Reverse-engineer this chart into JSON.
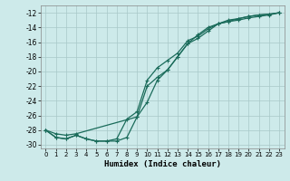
{
  "xlabel": "Humidex (Indice chaleur)",
  "bg_color": "#cdeaea",
  "grid_color": "#a8c8c8",
  "line_color": "#1a6b5a",
  "xlim": [
    -0.5,
    23.5
  ],
  "ylim": [
    -30.5,
    -11.0
  ],
  "yticks": [
    -30,
    -28,
    -26,
    -24,
    -22,
    -20,
    -18,
    -16,
    -14,
    -12
  ],
  "xticks": [
    0,
    1,
    2,
    3,
    4,
    5,
    6,
    7,
    8,
    9,
    10,
    11,
    12,
    13,
    14,
    15,
    16,
    17,
    18,
    19,
    20,
    21,
    22,
    23
  ],
  "line1_x": [
    0,
    1,
    2,
    3,
    4,
    5,
    6,
    7,
    8,
    9,
    10,
    11,
    12,
    13,
    14,
    15,
    16,
    17,
    18,
    19,
    20,
    21,
    22,
    23
  ],
  "line1_y": [
    -28.0,
    -29.0,
    -29.2,
    -28.7,
    -29.2,
    -29.5,
    -29.5,
    -29.5,
    -29.0,
    -26.2,
    -22.0,
    -20.8,
    -19.8,
    -18.0,
    -16.2,
    -15.5,
    -14.5,
    -13.5,
    -13.2,
    -13.0,
    -12.7,
    -12.5,
    -12.3,
    -12.0
  ],
  "line2_x": [
    0,
    1,
    2,
    3,
    4,
    5,
    6,
    7,
    8,
    9,
    10,
    11,
    12,
    13,
    14,
    15,
    16,
    17,
    18,
    19,
    20,
    21,
    22,
    23
  ],
  "line2_y": [
    -28.0,
    -29.0,
    -29.2,
    -28.7,
    -29.2,
    -29.5,
    -29.5,
    -29.2,
    -26.5,
    -25.5,
    -21.2,
    -19.5,
    -18.5,
    -17.5,
    -15.8,
    -15.2,
    -14.2,
    -13.5,
    -13.2,
    -12.8,
    -12.5,
    -12.3,
    -12.2,
    -12.0
  ],
  "line3_x": [
    0,
    1,
    2,
    3,
    9,
    10,
    11,
    12,
    13,
    14,
    15,
    16,
    17,
    18,
    19,
    20,
    21,
    22,
    23
  ],
  "line3_y": [
    -28.0,
    -28.5,
    -28.7,
    -28.5,
    -26.2,
    -24.2,
    -21.2,
    -19.8,
    -18.0,
    -16.2,
    -15.0,
    -14.0,
    -13.5,
    -13.0,
    -12.8,
    -12.5,
    -12.3,
    -12.2,
    -12.0
  ]
}
